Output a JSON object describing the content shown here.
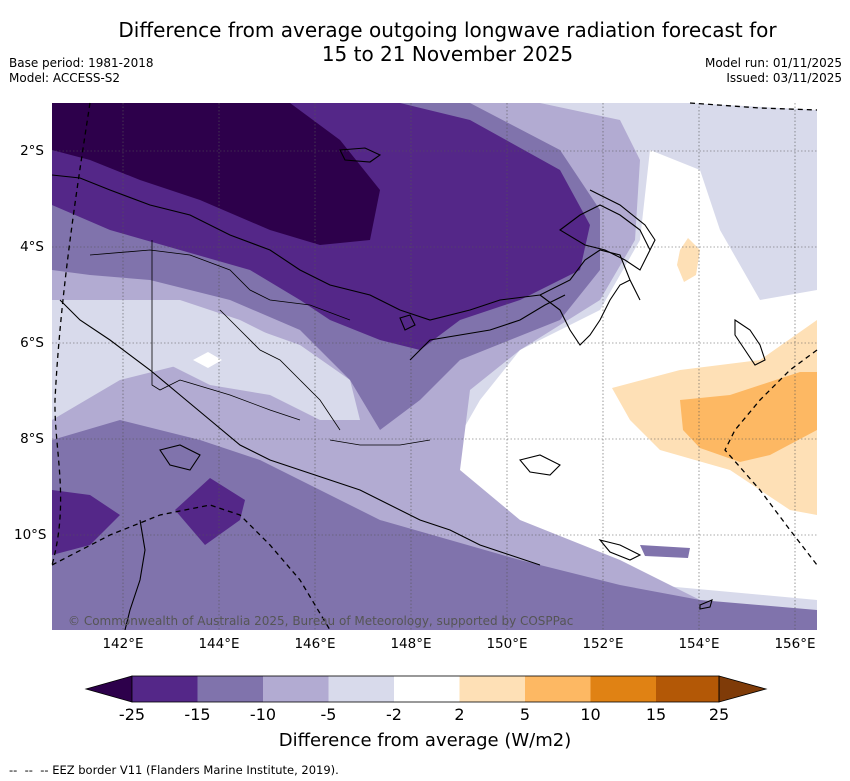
{
  "title": {
    "line1": "Difference from average outgoing longwave radiation forecast for",
    "line2": "15 to 21 November 2025"
  },
  "meta": {
    "base_period": "Base period: 1981-2018",
    "model": "Model: ACCESS-S2",
    "model_run": "Model run: 01/11/2025",
    "issued": "Issued: 03/11/2025"
  },
  "map": {
    "x_ticks": [
      "142°E",
      "144°E",
      "146°E",
      "148°E",
      "150°E",
      "152°E",
      "154°E",
      "156°E"
    ],
    "y_ticks": [
      "2°S",
      "4°S",
      "6°S",
      "8°S",
      "10°S"
    ],
    "copyright": "© Commonwealth of Australia 2025, Bureau of Meteorology, supported by COSPPac"
  },
  "colorbar": {
    "labels": [
      "-25",
      "-15",
      "-10",
      "-5",
      "-2",
      "2",
      "5",
      "10",
      "15",
      "25"
    ],
    "colors": [
      "#2d004b",
      "#542788",
      "#8073ac",
      "#b2abd2",
      "#d8daeb",
      "#ffffff",
      "#fee0b6",
      "#fdb863",
      "#e08214",
      "#b35806",
      "#7f3b08"
    ],
    "title": "Difference from average (W/m2)"
  },
  "legend": {
    "eez": "-- EEZ border V11 (Flanders Marine Institute, 2019)."
  },
  "palette": {
    "lvl_m25": "#2d004b",
    "lvl_m15": "#542788",
    "lvl_m10": "#8073ac",
    "lvl_m5": "#b2abd2",
    "lvl_m2": "#d8daeb",
    "lvl_0": "#ffffff",
    "lvl_p2": "#fee0b6",
    "lvl_p5": "#fdb863",
    "lvl_p10": "#e08214",
    "lvl_p15": "#b35806",
    "lvl_p25": "#7f3b08"
  }
}
